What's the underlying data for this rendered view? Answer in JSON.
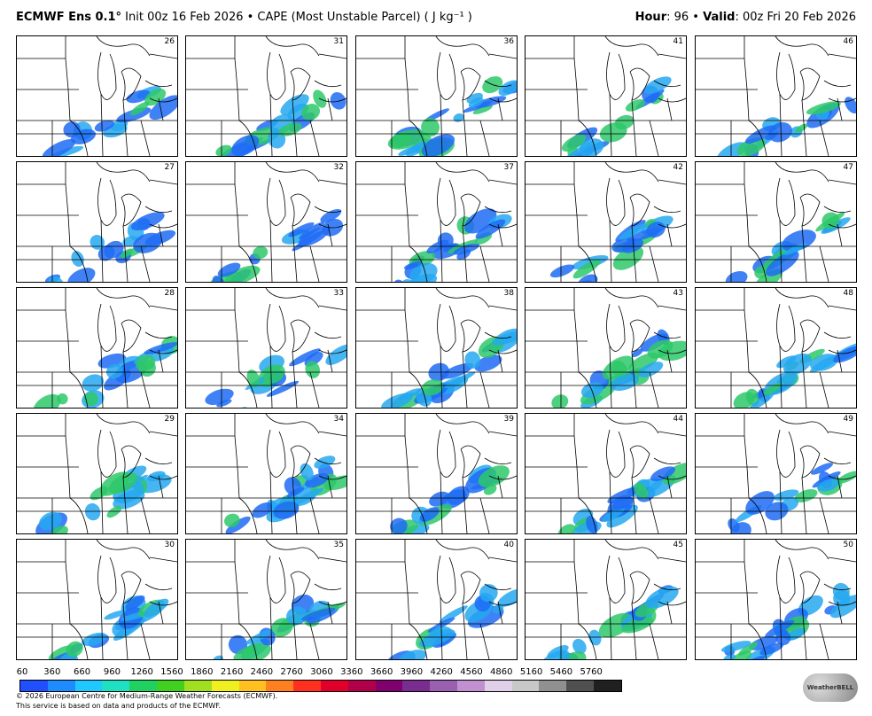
{
  "header": {
    "model": "ECMWF Ens 0.1°",
    "init": "Init 00z 16 Feb 2026 • CAPE (Most Unstable Parcel) ( J kg⁻¹ )",
    "hour_label": "Hour",
    "hour": ": 96 • ",
    "valid_label": "Valid",
    "valid": ": 00z Fri 20 Feb 2026"
  },
  "panels": [
    26,
    27,
    28,
    29,
    30,
    31,
    32,
    33,
    34,
    35,
    36,
    37,
    38,
    39,
    40,
    41,
    42,
    43,
    44,
    45,
    46,
    47,
    48,
    49,
    50
  ],
  "colorbar": {
    "ticks": [
      60,
      360,
      660,
      960,
      1260,
      1560,
      1860,
      2160,
      2460,
      2760,
      3060,
      3360,
      3660,
      3960,
      4260,
      4560,
      4860,
      5160,
      5460,
      5760
    ]
  },
  "footer": {
    "copyright": "© 2026 European Centre for Medium-Range Weather Forecasts (ECMWF).",
    "note": "This service is based on data and products of the ECMWF."
  },
  "logo": "WeatherBELL"
}
